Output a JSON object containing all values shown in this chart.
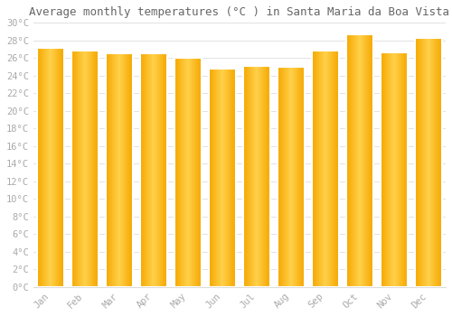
{
  "title": "Average monthly temperatures (°C ) in Santa Maria da Boa Vista",
  "months": [
    "Jan",
    "Feb",
    "Mar",
    "Apr",
    "May",
    "Jun",
    "Jul",
    "Aug",
    "Sep",
    "Oct",
    "Nov",
    "Dec"
  ],
  "values": [
    27.2,
    26.8,
    26.5,
    26.5,
    26.0,
    24.8,
    25.1,
    25.0,
    26.8,
    28.7,
    26.6,
    28.3
  ],
  "bar_color_center": "#FFD04A",
  "bar_color_edge": "#F5A800",
  "background_color": "#FFFFFF",
  "plot_bg_color": "#FFFFFF",
  "grid_color": "#DDDDDD",
  "text_color": "#AAAAAA",
  "title_color": "#666666",
  "ylim": [
    0,
    30
  ],
  "ytick_step": 2,
  "title_fontsize": 9,
  "tick_fontsize": 7.5,
  "font_family": "monospace"
}
